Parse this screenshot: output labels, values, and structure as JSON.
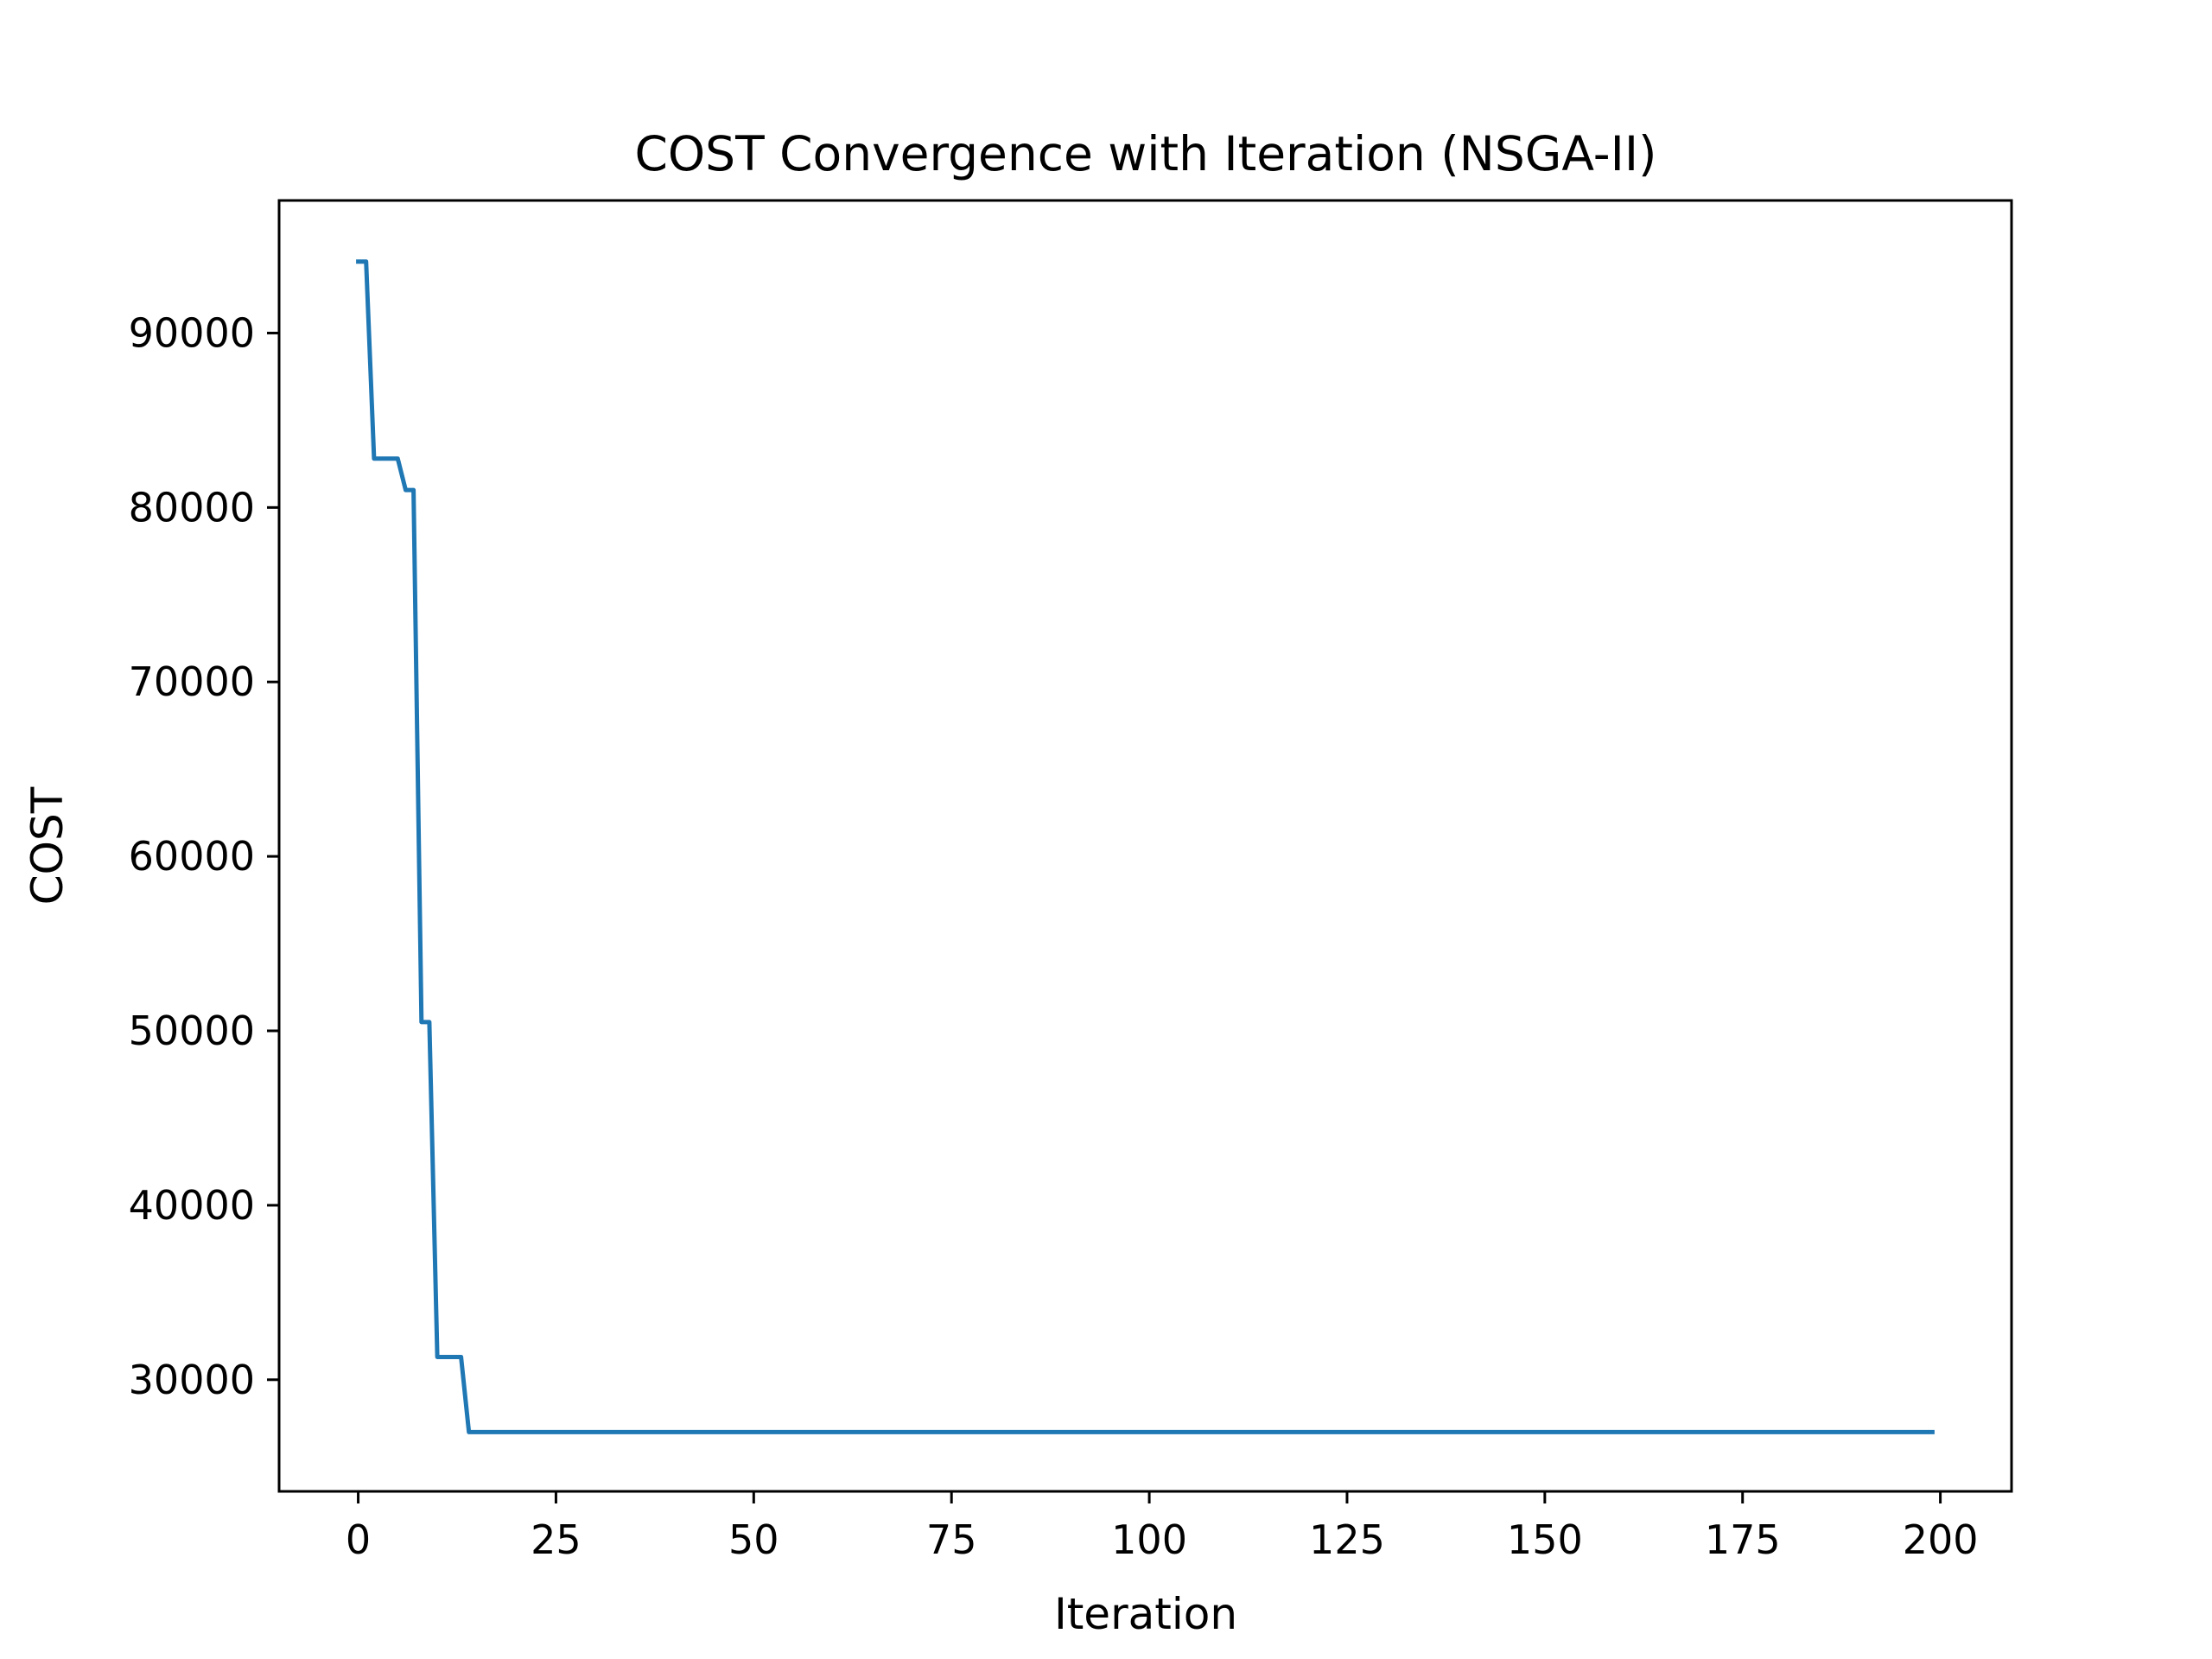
{
  "chart_data": {
    "type": "line",
    "title": "COST Convergence with Iteration (NSGA-II)",
    "xlabel": "Iteration",
    "ylabel": "COST",
    "xlim": [
      -10,
      209
    ],
    "ylim": [
      23600,
      97600
    ],
    "xticks": [
      0,
      25,
      50,
      75,
      100,
      125,
      150,
      175,
      200
    ],
    "xtick_labels": [
      "0",
      "25",
      "50",
      "75",
      "100",
      "125",
      "150",
      "175",
      "200"
    ],
    "yticks": [
      30000,
      40000,
      50000,
      60000,
      70000,
      80000,
      90000
    ],
    "ytick_labels": [
      "30000",
      "40000",
      "50000",
      "60000",
      "70000",
      "80000",
      "90000"
    ],
    "grid": false,
    "legend": "none",
    "series": [
      {
        "color": "#1f77b4",
        "x": [
          0,
          1,
          2,
          3,
          4,
          5,
          6,
          7,
          8,
          9,
          10,
          11,
          12,
          13,
          14,
          199
        ],
        "y": [
          94100,
          94100,
          82800,
          82800,
          82800,
          82800,
          81000,
          81000,
          50500,
          50500,
          31300,
          31300,
          31300,
          31300,
          27000,
          27000
        ]
      }
    ]
  }
}
